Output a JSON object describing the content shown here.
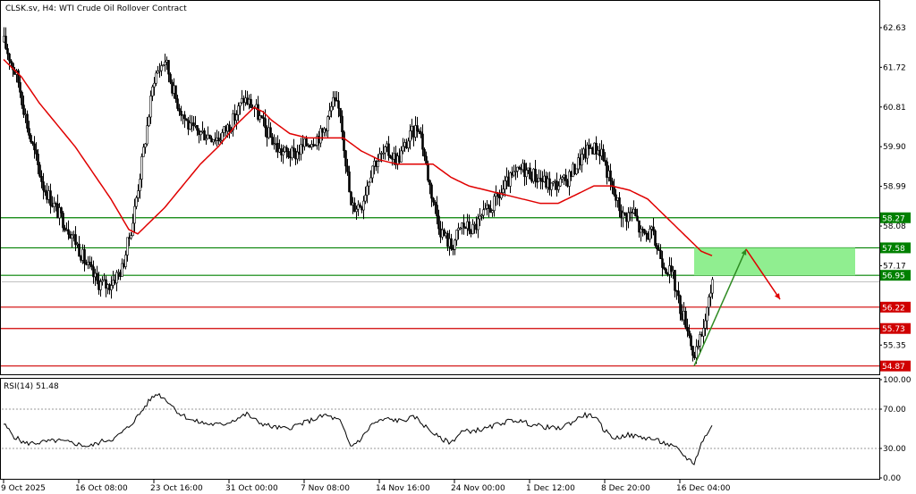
{
  "header": {
    "symbol_label": "CLSK.sv, H4:",
    "instrument_label": "WTI Crude Oil Rollover Contract"
  },
  "rsi_panel": {
    "label": "RSI(14) 51.48"
  },
  "colors": {
    "candle": "#000000",
    "ma": "#e00000",
    "support_line": "#d00000",
    "resistance_line": "#008000",
    "zone_fill": "#90ee90",
    "up_arrow": "#2e8b22",
    "down_arrow": "#e00000",
    "rsi_line": "#000000"
  },
  "chart_data": {
    "type": "candlestick",
    "title": "WTI Crude Oil Rollover Contract",
    "timeframe": "H4",
    "ylim": [
      54.7,
      63.1
    ],
    "y_ticks": [
      "62.63",
      "61.72",
      "60.81",
      "59.90",
      "58.99",
      "58.08",
      "57.17",
      "55.35"
    ],
    "x_ticks": [
      "9 Oct 2025",
      "16 Oct 08:00",
      "23 Oct 16:00",
      "31 Oct 00:00",
      "7 Nov 08:00",
      "14 Nov 16:00",
      "24 Nov 00:00",
      "1 Dec 12:00",
      "8 Dec 20:00",
      "16 Dec 04:00"
    ],
    "close_anchors": [
      [
        0,
        62.3
      ],
      [
        8,
        61.4
      ],
      [
        14,
        60.2
      ],
      [
        22,
        59.0
      ],
      [
        30,
        58.4
      ],
      [
        38,
        57.9
      ],
      [
        46,
        57.2
      ],
      [
        52,
        56.8
      ],
      [
        58,
        56.7
      ],
      [
        66,
        57.1
      ],
      [
        72,
        58.2
      ],
      [
        78,
        59.8
      ],
      [
        84,
        61.5
      ],
      [
        90,
        61.9
      ],
      [
        96,
        61.0
      ],
      [
        104,
        60.3
      ],
      [
        112,
        60.2
      ],
      [
        120,
        60.1
      ],
      [
        128,
        60.5
      ],
      [
        134,
        61.0
      ],
      [
        140,
        60.8
      ],
      [
        146,
        60.3
      ],
      [
        154,
        59.8
      ],
      [
        162,
        59.7
      ],
      [
        170,
        60.0
      ],
      [
        178,
        60.2
      ],
      [
        184,
        60.9
      ],
      [
        188,
        60.7
      ],
      [
        194,
        58.5
      ],
      [
        200,
        58.6
      ],
      [
        206,
        59.5
      ],
      [
        214,
        59.8
      ],
      [
        220,
        59.6
      ],
      [
        228,
        60.2
      ],
      [
        232,
        60.4
      ],
      [
        238,
        59.0
      ],
      [
        244,
        58.0
      ],
      [
        250,
        57.6
      ],
      [
        256,
        58.1
      ],
      [
        262,
        58.0
      ],
      [
        268,
        58.3
      ],
      [
        274,
        58.6
      ],
      [
        282,
        59.1
      ],
      [
        290,
        59.4
      ],
      [
        298,
        59.2
      ],
      [
        306,
        59.0
      ],
      [
        314,
        59.1
      ],
      [
        322,
        59.6
      ],
      [
        328,
        59.9
      ],
      [
        334,
        59.8
      ],
      [
        340,
        58.9
      ],
      [
        346,
        58.3
      ],
      [
        352,
        58.4
      ],
      [
        356,
        57.9
      ],
      [
        362,
        57.9
      ],
      [
        368,
        57.3
      ],
      [
        374,
        56.9
      ],
      [
        378,
        56.2
      ],
      [
        382,
        55.8
      ],
      [
        386,
        55.0
      ],
      [
        390,
        55.6
      ],
      [
        394,
        56.3
      ],
      [
        396,
        56.9
      ]
    ],
    "ma_anchors": [
      [
        0,
        61.9
      ],
      [
        10,
        61.5
      ],
      [
        20,
        60.9
      ],
      [
        30,
        60.4
      ],
      [
        40,
        59.9
      ],
      [
        50,
        59.3
      ],
      [
        60,
        58.7
      ],
      [
        70,
        58.0
      ],
      [
        75,
        57.9
      ],
      [
        80,
        58.1
      ],
      [
        90,
        58.5
      ],
      [
        100,
        59.0
      ],
      [
        110,
        59.5
      ],
      [
        120,
        59.9
      ],
      [
        130,
        60.4
      ],
      [
        140,
        60.8
      ],
      [
        145,
        60.7
      ],
      [
        150,
        60.5
      ],
      [
        160,
        60.2
      ],
      [
        170,
        60.1
      ],
      [
        180,
        60.1
      ],
      [
        190,
        60.1
      ],
      [
        200,
        59.8
      ],
      [
        210,
        59.6
      ],
      [
        220,
        59.5
      ],
      [
        230,
        59.5
      ],
      [
        240,
        59.5
      ],
      [
        250,
        59.2
      ],
      [
        260,
        59.0
      ],
      [
        270,
        58.9
      ],
      [
        280,
        58.8
      ],
      [
        290,
        58.7
      ],
      [
        300,
        58.6
      ],
      [
        310,
        58.6
      ],
      [
        320,
        58.8
      ],
      [
        330,
        59.0
      ],
      [
        340,
        59.0
      ],
      [
        350,
        58.9
      ],
      [
        360,
        58.7
      ],
      [
        370,
        58.3
      ],
      [
        380,
        57.9
      ],
      [
        390,
        57.5
      ],
      [
        396,
        57.4
      ]
    ],
    "levels": {
      "resistance": [
        {
          "value": 58.27,
          "label": "58.27"
        },
        {
          "value": 57.58,
          "label": "57.58"
        },
        {
          "value": 56.95,
          "label": "56.95"
        }
      ],
      "support": [
        {
          "value": 56.22,
          "label": "56.22"
        },
        {
          "value": 55.73,
          "label": "55.73"
        },
        {
          "value": 54.87,
          "label": "54.87"
        }
      ],
      "current_price": 56.8
    },
    "target_zone": {
      "y_low": 56.95,
      "y_high": 57.58
    },
    "projection": {
      "up_from": [
        386,
        54.87
      ],
      "up_to": [
        415,
        57.55
      ],
      "down_from": [
        415,
        57.55
      ],
      "down_to": [
        434,
        56.4
      ]
    },
    "rsi": {
      "ylim": [
        0,
        100
      ],
      "y_ticks": [
        "100.00",
        "70.00",
        "30.00",
        "0.00"
      ],
      "value": 51.48,
      "anchors": [
        [
          0,
          55
        ],
        [
          6,
          42
        ],
        [
          12,
          35
        ],
        [
          20,
          36
        ],
        [
          30,
          38
        ],
        [
          40,
          35
        ],
        [
          48,
          32
        ],
        [
          56,
          38
        ],
        [
          62,
          40
        ],
        [
          70,
          52
        ],
        [
          76,
          65
        ],
        [
          82,
          80
        ],
        [
          86,
          86
        ],
        [
          92,
          78
        ],
        [
          98,
          66
        ],
        [
          106,
          58
        ],
        [
          114,
          55
        ],
        [
          122,
          54
        ],
        [
          130,
          60
        ],
        [
          136,
          65
        ],
        [
          142,
          57
        ],
        [
          150,
          52
        ],
        [
          158,
          50
        ],
        [
          166,
          55
        ],
        [
          174,
          60
        ],
        [
          180,
          64
        ],
        [
          188,
          58
        ],
        [
          194,
          32
        ],
        [
          200,
          40
        ],
        [
          206,
          55
        ],
        [
          214,
          60
        ],
        [
          222,
          58
        ],
        [
          230,
          62
        ],
        [
          236,
          52
        ],
        [
          244,
          40
        ],
        [
          250,
          36
        ],
        [
          256,
          47
        ],
        [
          262,
          48
        ],
        [
          270,
          50
        ],
        [
          278,
          56
        ],
        [
          286,
          59
        ],
        [
          294,
          55
        ],
        [
          302,
          52
        ],
        [
          310,
          50
        ],
        [
          318,
          57
        ],
        [
          324,
          64
        ],
        [
          330,
          63
        ],
        [
          336,
          48
        ],
        [
          342,
          40
        ],
        [
          348,
          44
        ],
        [
          354,
          42
        ],
        [
          362,
          40
        ],
        [
          370,
          35
        ],
        [
          376,
          30
        ],
        [
          382,
          20
        ],
        [
          386,
          15
        ],
        [
          390,
          35
        ],
        [
          394,
          48
        ],
        [
          396,
          52
        ]
      ]
    }
  }
}
